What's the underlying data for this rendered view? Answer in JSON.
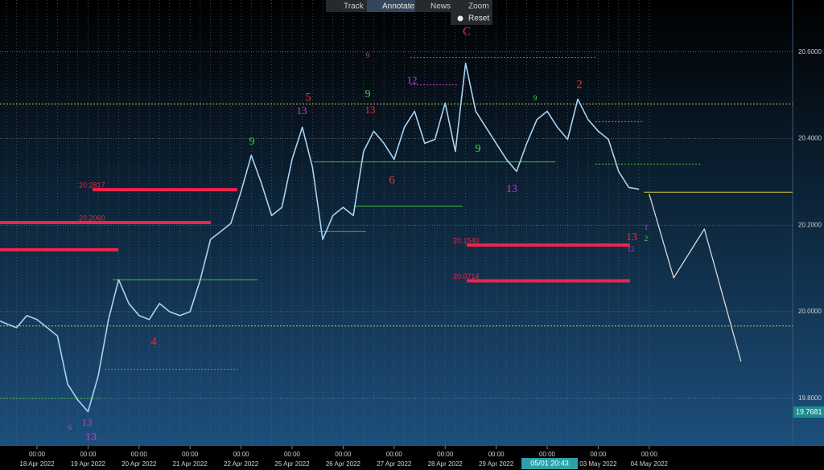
{
  "toolbar": {
    "items": [
      "Track",
      "Annotate",
      "News",
      "Zoom"
    ],
    "reset": "Reset"
  },
  "chart_data": {
    "type": "line",
    "categories": [
      null,
      null,
      null,
      null,
      "18 Apr 2022",
      null,
      null,
      null,
      null,
      "19 Apr 2022",
      null,
      null,
      null,
      null,
      "20 Apr 2022",
      null,
      null,
      null,
      null,
      "21 Apr 2022",
      null,
      null,
      null,
      null,
      "22 Apr 2022",
      null,
      null,
      null,
      null,
      "25 Apr 2022",
      null,
      null,
      null,
      null,
      "26 Apr 2022",
      null,
      null,
      null,
      null,
      "27 Apr 2022",
      null,
      null,
      null,
      null,
      "28 Apr 2022",
      null,
      null,
      null,
      null,
      "29 Apr 2022",
      null,
      null,
      null,
      null,
      "02 May 2022",
      null,
      null,
      null,
      null,
      "03 May 2022",
      null,
      null,
      null,
      null,
      "04 May 2022"
    ],
    "x_time_label": "00:00",
    "series": [
      {
        "color": "#a9d2f2",
        "values": [
          19.982,
          19.972,
          19.963,
          19.991,
          19.982,
          19.963,
          19.944,
          19.833,
          19.796,
          19.769,
          19.852,
          19.982,
          20.074,
          20.019,
          19.991,
          19.982,
          20.019,
          20.0,
          19.991,
          20.0,
          20.074,
          20.167,
          20.185,
          20.204,
          20.278,
          20.361,
          20.296,
          20.222,
          20.241,
          20.352,
          20.426,
          20.333,
          20.167,
          20.222,
          20.241,
          20.222,
          20.37,
          20.417,
          20.389,
          20.352,
          20.426,
          20.463,
          20.389,
          20.398,
          20.482,
          20.37,
          20.574,
          20.463,
          20.426,
          20.389,
          20.352,
          20.324,
          20.389,
          20.444,
          20.463,
          20.426,
          20.398,
          20.491,
          20.444,
          20.417,
          20.398,
          20.324,
          20.287,
          20.283,
          null
        ]
      },
      {
        "color": "#d8d8d8",
        "x": [
          64,
          66.4,
          69.4,
          73
        ],
        "values": [
          20.272,
          20.078,
          20.191,
          19.885
        ]
      }
    ],
    "ylim": [
      19.69,
      20.72
    ],
    "yticks": [
      {
        "value": 19.8,
        "label": "19.8000"
      },
      {
        "value": 20.0,
        "label": "20.0000"
      },
      {
        "value": 20.2,
        "label": "20.2000"
      },
      {
        "value": 20.4,
        "label": "20.4000"
      },
      {
        "value": 20.6,
        "label": "20.6000"
      }
    ],
    "grid": true,
    "last_price": 19.7681,
    "crosshair_label": "05/01 20:43",
    "resistance_levels": [
      20.2817,
      {
        "value": 20.206,
        "label": "20.2060"
      },
      {
        "value": 20.154,
        "label": "20.1540"
      },
      20.0714
    ],
    "unlabeled_levels": [
      20.143
    ],
    "level_color": "#f0234a",
    "reference_lines": [
      20.48,
      19.967
    ],
    "current_line": 20.276,
    "reference_color": "#d8c23a",
    "green_levels": [
      20.346,
      20.244,
      20.185,
      20.074,
      19.867,
      19.8,
      20.341,
      20.439
    ],
    "green_color": "#3fbf3f",
    "magenta_levels": [
      20.587,
      20.524
    ],
    "magenta_color": "#c83ac8",
    "annotations": [
      {
        "text": "5",
        "color": "#e8303c"
      },
      {
        "text": "C",
        "color": "#e8303c"
      },
      {
        "text": "2",
        "color": "#e8303c"
      },
      {
        "text": "4",
        "color": "#e8303c"
      },
      {
        "text": "6",
        "color": "#e8303c"
      },
      {
        "text": "13",
        "color": "#e8303c"
      },
      {
        "text": "13",
        "color": "#c83ad4"
      },
      {
        "text": "13",
        "color": "#c83ad4"
      },
      {
        "text": "9",
        "color": "#3ddc3d"
      },
      {
        "text": "9",
        "color": "#3ddc3d"
      },
      {
        "text": "9",
        "color": "#3ddc3d"
      },
      {
        "text": "13",
        "color": "#c83ad4"
      },
      {
        "text": "13",
        "color": "#e8303c"
      },
      {
        "text": "12",
        "color": "#c83ad4"
      },
      {
        "text": "9",
        "color": "#c83ad4"
      },
      {
        "text": "1",
        "color": "#c83ad4"
      },
      {
        "text": "2",
        "color": "#3ddc3d"
      },
      {
        "text": "12",
        "color": "#c83ad4"
      },
      {
        "text": "13",
        "color": "#c83ad4"
      },
      {
        "text": "6",
        "color": "#c83ad4"
      },
      {
        "text": "9",
        "color": "#3ddc3d"
      }
    ]
  }
}
